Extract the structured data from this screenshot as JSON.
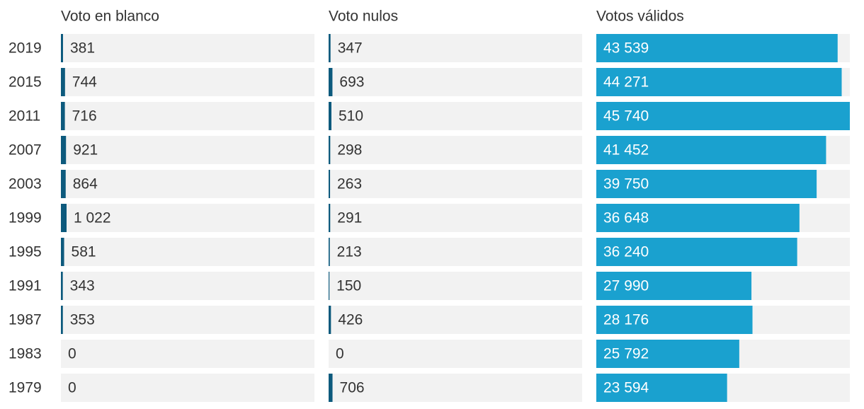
{
  "chart_data": {
    "type": "bar",
    "orientation": "horizontal",
    "categories": [
      "2019",
      "2015",
      "2011",
      "2007",
      "2003",
      "1999",
      "1995",
      "1991",
      "1987",
      "1983",
      "1979"
    ],
    "series": [
      {
        "name": "Voto en blanco",
        "color": "#0d5a7d",
        "values": [
          381,
          744,
          716,
          921,
          864,
          1022,
          581,
          343,
          353,
          0,
          0
        ],
        "value_labels": [
          "381",
          "744",
          "716",
          "921",
          "864",
          "1 022",
          "581",
          "343",
          "353",
          "0",
          "0"
        ]
      },
      {
        "name": "Voto nulos",
        "color": "#0d5a7d",
        "values": [
          347,
          693,
          510,
          298,
          263,
          291,
          213,
          150,
          426,
          0,
          706
        ],
        "value_labels": [
          "347",
          "693",
          "510",
          "298",
          "263",
          "291",
          "213",
          "150",
          "426",
          "0",
          "706"
        ]
      },
      {
        "name": "Votos válidos",
        "color": "#1aa1cf",
        "values": [
          43539,
          44271,
          45740,
          41452,
          39750,
          36648,
          36240,
          27990,
          28176,
          25792,
          23594
        ],
        "value_labels": [
          "43 539",
          "44 271",
          "45 740",
          "41 452",
          "39 750",
          "36 648",
          "36 240",
          "27 990",
          "28 176",
          "25 792",
          "23 594"
        ]
      }
    ]
  }
}
